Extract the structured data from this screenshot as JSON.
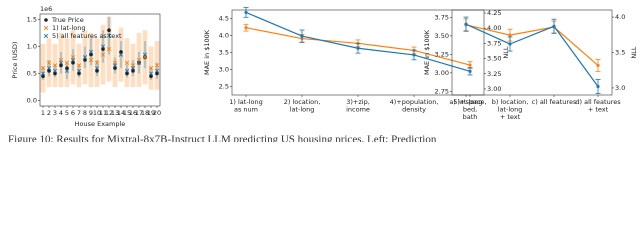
{
  "chart_data": [
    {
      "type": "interval",
      "y_label": "Price (USD)",
      "x_label": "House Example",
      "y_offset_label": "1e6",
      "categories": [
        "1",
        "2",
        "3",
        "4",
        "5",
        "6",
        "7",
        "8",
        "9",
        "10",
        "11",
        "12",
        "13",
        "14",
        "15",
        "16",
        "17",
        "18",
        "19",
        "20"
      ],
      "ylim": [
        -0.1,
        1.6
      ],
      "yticks": [
        {
          "value": 0,
          "label": "0.0"
        },
        {
          "value": 0.5,
          "label": "0.5"
        },
        {
          "value": 1,
          "label": "1.0"
        },
        {
          "value": 1.5,
          "label": "1.5"
        }
      ],
      "legend": "upper left",
      "series": [
        {
          "name": "True Price",
          "color": "#222222",
          "marker": "o",
          "values": [
            0.45,
            0.55,
            0.5,
            0.65,
            0.6,
            0.7,
            0.5,
            0.75,
            0.85,
            0.55,
            0.95,
            1.3,
            0.6,
            0.9,
            0.5,
            0.55,
            0.7,
            0.8,
            0.45,
            0.5
          ]
        },
        {
          "name": "1) lat-long",
          "color": "#ff7f0e",
          "marker": "x",
          "values": [
            0.6,
            0.7,
            0.65,
            0.75,
            0.7,
            0.8,
            0.65,
            0.8,
            0.75,
            0.7,
            0.85,
            0.95,
            0.7,
            0.85,
            0.7,
            0.65,
            0.75,
            0.8,
            0.6,
            0.65
          ],
          "errors": [
            0.45,
            0.45,
            0.4,
            0.5,
            0.45,
            0.5,
            0.4,
            0.5,
            0.5,
            0.45,
            0.55,
            0.6,
            0.45,
            0.5,
            0.45,
            0.4,
            0.5,
            0.5,
            0.4,
            0.45
          ]
        },
        {
          "name": "5) all features as text",
          "color": "#1f77b4",
          "marker": "x",
          "values": [
            0.5,
            0.6,
            0.55,
            0.7,
            0.55,
            0.75,
            0.55,
            0.8,
            0.9,
            0.6,
            1.0,
            1.2,
            0.65,
            0.85,
            0.55,
            0.6,
            0.7,
            0.85,
            0.5,
            0.55
          ],
          "errors": [
            0.12,
            0.15,
            0.12,
            0.2,
            0.15,
            0.2,
            0.12,
            0.2,
            0.25,
            0.15,
            0.3,
            0.35,
            0.15,
            0.25,
            0.12,
            0.15,
            0.2,
            0.25,
            0.12,
            0.15
          ]
        }
      ]
    },
    {
      "type": "line",
      "y_label": "MAE in $100K",
      "y2_label": "NLL",
      "categories": [
        "1) lat-long\nas num",
        "2) location,\nlat-long",
        "3)+zip,\nincome",
        "4)+population,\ndensity",
        "5)+space,\nbed,\nbath"
      ],
      "ylim": [
        2.25,
        4.75
      ],
      "yticks": [
        {
          "value": 2.5,
          "label": "2.5"
        },
        {
          "value": 3,
          "label": "3.0"
        },
        {
          "value": 3.5,
          "label": "3.5"
        },
        {
          "value": 4,
          "label": "4.0"
        },
        {
          "value": 4.5,
          "label": "4.5"
        }
      ],
      "y2lim": [
        2.9,
        4.3
      ],
      "y2ticks": [
        {
          "value": 3,
          "label": "3.00"
        },
        3.25,
        {
          "value": 3.5,
          "label": "3.50"
        },
        3.75,
        {
          "value": 4,
          "label": "4.00"
        },
        4.25
      ],
      "series": [
        {
          "name": "MAE",
          "color": "#ff7f0e",
          "values": [
            4.23,
            3.91,
            3.77,
            3.56,
            3.13
          ],
          "errors": [
            0.1,
            0.12,
            0.1,
            0.1,
            0.1
          ]
        },
        {
          "name": "NLL",
          "color": "#1f77b4",
          "axis": "y2",
          "values": [
            4.26,
            3.87,
            3.67,
            3.56,
            3.29
          ],
          "errors": [
            0.08,
            0.1,
            0.08,
            0.08,
            0.06
          ]
        }
      ]
    },
    {
      "type": "line",
      "y_label": "MAE in $100K",
      "y2_label": "NLL",
      "categories": [
        "a) lat-long",
        "b) location,\nlat-long\n+ text",
        "c) all features",
        "d) all features\n+ text"
      ],
      "ylim": [
        2.7,
        3.85
      ],
      "yticks": [
        2.75,
        {
          "value": 3,
          "label": "3.00"
        },
        3.25,
        {
          "value": 3.5,
          "label": "3.50"
        },
        3.75
      ],
      "y2lim": [
        2.9,
        4.1
      ],
      "y2ticks": [
        {
          "value": 3,
          "label": "3.0"
        },
        3.5,
        {
          "value": 4,
          "label": "4.0"
        }
      ],
      "series": [
        {
          "name": "MAE",
          "color": "#ff7f0e",
          "values": [
            3.65,
            3.51,
            3.62,
            3.1
          ],
          "errors": [
            0.08,
            0.08,
            0.08,
            0.08
          ]
        },
        {
          "name": "NLL",
          "color": "#1f77b4",
          "axis": "y2",
          "values": [
            3.9,
            3.62,
            3.87,
            3.02
          ],
          "errors": [
            0.1,
            0.1,
            0.1,
            0.1
          ]
        }
      ]
    }
  ],
  "caption": "Figure 10: Results for Mixtral-8x7B-Instruct LLM predicting US housing prices. Left: Prediction"
}
